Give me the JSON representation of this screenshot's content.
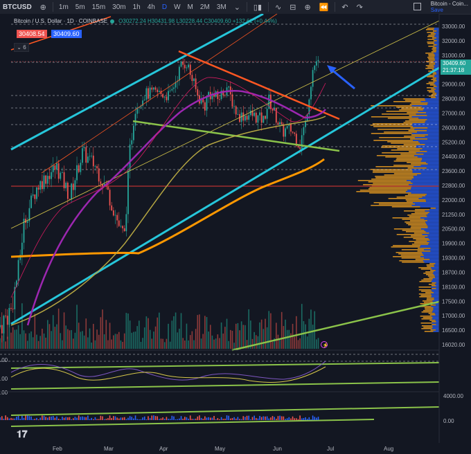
{
  "toolbar": {
    "symbol": "BTCUSD",
    "timeframes": [
      "1m",
      "5m",
      "15m",
      "30m",
      "1h",
      "4h",
      "D",
      "W",
      "M",
      "2M",
      "3M"
    ],
    "active_timeframe": "D",
    "title": "Bitcoin - Coin...",
    "save": "Save"
  },
  "legend": {
    "title": "Bitcoin / U.S. Dollar · 1D · COINBASE",
    "ohlc": "O30272.24 H30431.98 L30228.44 C30409.60 +132.61 (+0.44%)",
    "sell_price": "30408.54",
    "buy_price": "30409.60",
    "indicator_count": "6"
  },
  "last_price": {
    "price": "30409.60",
    "countdown": "21:37:18"
  },
  "chart_data": {
    "type": "candlestick",
    "symbol": "BTCUSD",
    "exchange": "COINBASE",
    "interval": "1D",
    "x_axis_labels": [
      "Feb",
      "Mar",
      "Apr",
      "May",
      "Jun",
      "Jul",
      "Aug"
    ],
    "y_axis_labels": [
      "33000.00",
      "32000.00",
      "31000.00",
      "30000.00",
      "29000.00",
      "28000.00",
      "27000.00",
      "26000.00",
      "25200.00",
      "24400.00",
      "23600.00",
      "22800.00",
      "22000.00",
      "21250.00",
      "20500.00",
      "19900.00",
      "19300.00",
      "18700.00",
      "18100.00",
      "17500.00",
      "17000.00",
      "16500.00",
      "16020.00"
    ],
    "oscillator_axis_labels": [
      ".00",
      ".00",
      ".00"
    ],
    "lower_axis_labels": [
      "4000.00",
      "0.00"
    ],
    "ylim": [
      15900,
      33600
    ],
    "price_series": [
      {
        "date": "2023-01-01",
        "close": 16600
      },
      {
        "date": "2023-01-08",
        "close": 17200
      },
      {
        "date": "2023-01-12",
        "close": 18800
      },
      {
        "date": "2023-01-15",
        "close": 20800
      },
      {
        "date": "2023-01-22",
        "close": 22700
      },
      {
        "date": "2023-01-29",
        "close": 23500
      },
      {
        "date": "2023-02-02",
        "close": 23800
      },
      {
        "date": "2023-02-09",
        "close": 22200
      },
      {
        "date": "2023-02-16",
        "close": 24600
      },
      {
        "date": "2023-02-23",
        "close": 23900
      },
      {
        "date": "2023-03-02",
        "close": 22400
      },
      {
        "date": "2023-03-09",
        "close": 20400
      },
      {
        "date": "2023-03-11",
        "close": 20200
      },
      {
        "date": "2023-03-14",
        "close": 24700
      },
      {
        "date": "2023-03-17",
        "close": 27400
      },
      {
        "date": "2023-03-22",
        "close": 28300
      },
      {
        "date": "2023-03-29",
        "close": 28400
      },
      {
        "date": "2023-04-05",
        "close": 28200
      },
      {
        "date": "2023-04-11",
        "close": 30300
      },
      {
        "date": "2023-04-14",
        "close": 30500
      },
      {
        "date": "2023-04-20",
        "close": 28200
      },
      {
        "date": "2023-04-24",
        "close": 27500
      },
      {
        "date": "2023-04-26",
        "close": 28400
      },
      {
        "date": "2023-05-01",
        "close": 28000
      },
      {
        "date": "2023-05-06",
        "close": 28800
      },
      {
        "date": "2023-05-12",
        "close": 26800
      },
      {
        "date": "2023-05-19",
        "close": 26900
      },
      {
        "date": "2023-05-26",
        "close": 26500
      },
      {
        "date": "2023-05-29",
        "close": 27900
      },
      {
        "date": "2023-06-05",
        "close": 25800
      },
      {
        "date": "2023-06-10",
        "close": 25900
      },
      {
        "date": "2023-06-15",
        "close": 25100
      },
      {
        "date": "2023-06-18",
        "close": 26300
      },
      {
        "date": "2023-06-20",
        "close": 28300
      },
      {
        "date": "2023-06-22",
        "close": 30000
      },
      {
        "date": "2023-06-24",
        "close": 30600
      },
      {
        "date": "2023-06-25",
        "close": 30400
      }
    ],
    "last": {
      "open": 30272.24,
      "high": 30431.98,
      "low": 30228.44,
      "close": 30409.6,
      "change": 132.61,
      "change_pct": 0.44
    }
  },
  "colors": {
    "bg": "#131722",
    "up": "#26a69a",
    "down": "#ef5350",
    "channel": "#26c6da",
    "trend_red": "#ff5722",
    "trend_green": "#8bc34a",
    "ma_purple": "#9c27b0",
    "ma_olive": "#b5a642",
    "ma_orange": "#ff9800",
    "accent": "#2962ff",
    "yellow": "#d6c74a",
    "hline": "#e53935"
  }
}
